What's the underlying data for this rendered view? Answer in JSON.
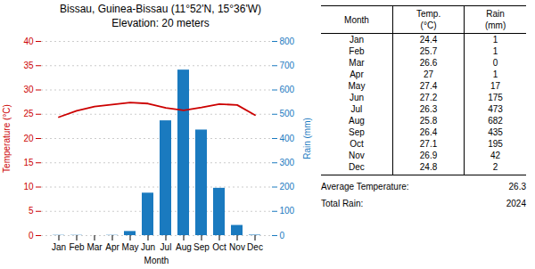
{
  "chart_data": {
    "type": "bar",
    "title": "Bissau, Guinea-Bissau (11°52'N, 15°36'W)",
    "subtitle": "Elevation: 20 meters",
    "xlabel": "Month",
    "categories": [
      "Jan",
      "Feb",
      "Mar",
      "Apr",
      "May",
      "Jun",
      "Jul",
      "Aug",
      "Sep",
      "Oct",
      "Nov",
      "Dec"
    ],
    "series": [
      {
        "name": "Rain (mm)",
        "type": "bar",
        "axis": "y2",
        "color": "#1a7abf",
        "values": [
          1,
          1,
          0,
          1,
          17,
          175,
          473,
          682,
          435,
          195,
          42,
          2
        ]
      },
      {
        "name": "Temperature (°C)",
        "type": "line",
        "color": "#cc0000",
        "values": [
          24.4,
          25.7,
          26.6,
          27.0,
          27.4,
          27.2,
          26.3,
          25.8,
          26.4,
          27.1,
          26.9,
          24.8
        ]
      }
    ],
    "ylim": [
      0,
      40
    ],
    "yticks": [
      0,
      5,
      10,
      15,
      20,
      25,
      30,
      35,
      40
    ],
    "y2lim": [
      0,
      800
    ],
    "y2ticks": [
      0,
      100,
      200,
      300,
      400,
      500,
      600,
      700,
      800
    ],
    "grid": true,
    "table": {
      "header": [
        [
          "Month"
        ],
        [
          "Temp.",
          "(°C)"
        ],
        [
          "Rain",
          "(mm)"
        ]
      ],
      "rows": [
        [
          "Jan",
          24.4,
          1
        ],
        [
          "Feb",
          25.7,
          1
        ],
        [
          "Mar",
          26.6,
          0
        ],
        [
          "Apr",
          27,
          1
        ],
        [
          "May",
          27.4,
          17
        ],
        [
          "Jun",
          27.2,
          175
        ],
        [
          "Jul",
          26.3,
          473
        ],
        [
          "Aug",
          25.8,
          682
        ],
        [
          "Sep",
          26.4,
          435
        ],
        [
          "Oct",
          27.1,
          195
        ],
        [
          "Nov",
          26.9,
          42
        ],
        [
          "Dec",
          24.8,
          2
        ]
      ],
      "footer": [
        {
          "label": "Average Temperature:",
          "value": 26.3
        },
        {
          "label": "Total Rain:",
          "value": 2024
        }
      ]
    }
  }
}
